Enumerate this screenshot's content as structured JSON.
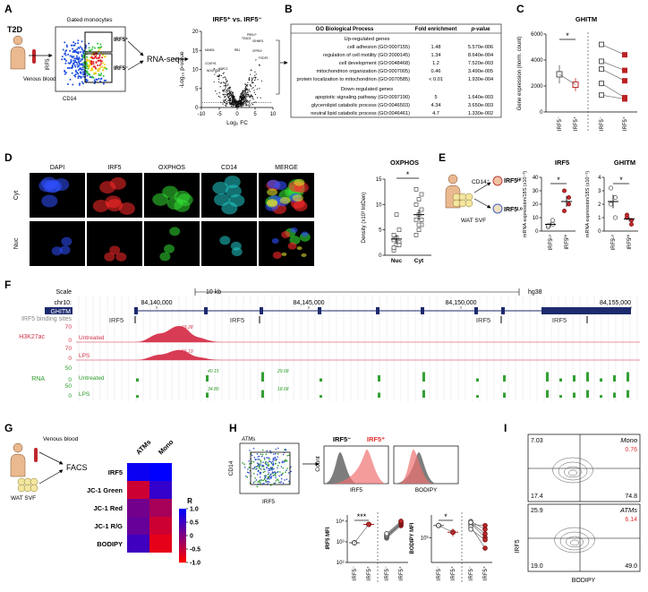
{
  "panel_a": {
    "label": "A",
    "group": "T2D",
    "sample": "Venous blood",
    "gate_title": "Gated monocytes",
    "flow_y": "IRF5",
    "flow_x": "CD14",
    "gate_pos": "IRF5⁺",
    "gate_neg": "IRF5⁻",
    "method": "RNA-seq",
    "volcano": {
      "title": "IRF5⁺ vs. IRF5⁻",
      "ylabel": "-Log₁₀ p-value",
      "xlabel": "Log₂ FC",
      "xlim": [
        -10,
        10
      ],
      "ylim": [
        0,
        20
      ],
      "xticks": [
        -10,
        -5,
        0,
        5,
        10
      ],
      "yticks": [
        0,
        5,
        10,
        15,
        20
      ],
      "genes": [
        "TEAD3",
        "PRELP",
        "IGHMR1",
        "RB1",
        "GPR19",
        "FGDP1",
        "MANDL",
        "COATH1",
        "NDUFS8A",
        "NCFC1"
      ]
    }
  },
  "panel_b": {
    "label": "B",
    "header": [
      "GO Biological Process",
      "Fold enrichment",
      "p-value"
    ],
    "up_title": "Up-regulated genes",
    "up_rows": [
      [
        "cell adhesion (GO:0007155)",
        "1.48",
        "5.570e-006"
      ],
      [
        "regulation of cell motility (GO:2000145)",
        "1.34",
        "8.640e-004"
      ],
      [
        "cell development (GO:0048468)",
        "1.2",
        "7.520e-003"
      ],
      [
        "mitochondrion organization (GO:0007005)",
        "0.46",
        "3.490e-005"
      ],
      [
        "protein localization to mitochondrion (GO:0070585)",
        "< 0.01",
        "1.930e-004"
      ]
    ],
    "down_title": "Down-regulated genes",
    "down_rows": [
      [
        "apoptotic signaling pathway (GO:0097190)",
        "5",
        "1.640e-003"
      ],
      [
        "glycerolipid catabolic process (GO:0046503)",
        "4.34",
        "3.650e-003"
      ],
      [
        "neutral lipid catabolic process (GO:0046461)",
        "4.7",
        "1.330e-002"
      ]
    ]
  },
  "panel_c": {
    "label": "C",
    "title": "GHITM",
    "ylabel": "Gene expression (norm. count)",
    "ylim": [
      0,
      6000
    ],
    "yticks": [
      0,
      2000,
      4000,
      6000
    ],
    "significance": "*",
    "xlabels": [
      "IRF5⁻",
      "IRF5⁺",
      "IRF5⁻",
      "IRF5⁺"
    ],
    "means": [
      2900,
      2100
    ],
    "errors": [
      700,
      500
    ],
    "pairs": [
      [
        5200,
        4400
      ],
      [
        3900,
        3200
      ],
      [
        3300,
        2400
      ],
      [
        2200,
        1100
      ],
      [
        1300,
        1000
      ]
    ]
  },
  "panel_d": {
    "label": "D",
    "channels": [
      "DAPI",
      "IRF5",
      "OXPHOS",
      "CD14",
      "MERGE"
    ],
    "rows": [
      "Cyt",
      "Nuc"
    ],
    "chart": {
      "title": "OXPHOS",
      "ylabel": "Density (x10³ IntDen)",
      "ylim": [
        0,
        15
      ],
      "yticks": [
        0,
        5,
        10,
        15
      ],
      "significance": "*",
      "xlabels": [
        "Nuc",
        "Cyt"
      ],
      "points": [
        [
          1,
          2,
          2.5,
          3,
          3.5,
          5,
          1.5,
          8,
          2,
          4
        ],
        [
          4,
          5,
          6,
          7,
          8,
          9,
          10,
          11,
          12,
          13,
          6,
          7
        ]
      ],
      "means": [
        3.2,
        8
      ],
      "errors": [
        0.8,
        1
      ]
    }
  },
  "panel_e": {
    "label": "E",
    "marker": "CD14⁺",
    "hi": "IRF5ᴴⁱ",
    "lo": "IRF5ᴸᵒ",
    "tissue": "WAT SVF",
    "charts": [
      {
        "title": "IRF5",
        "ylabel": "mRNA expression/18S (x10⁻³)",
        "ylim": [
          0,
          40
        ],
        "yticks": [
          0,
          10,
          20,
          30,
          40
        ],
        "significance": "*",
        "xlabels": [
          "IRF5ᴸᵒ",
          "IRF5ᴴⁱ"
        ],
        "points": [
          [
            3,
            5,
            4,
            8
          ],
          [
            15,
            25,
            30,
            20
          ]
        ],
        "means": [
          5,
          22
        ],
        "errors": [
          1.5,
          4
        ]
      },
      {
        "title": "GHITM",
        "ylabel": "mRNA expression/18S (x10⁻²)",
        "ylim": [
          0,
          4
        ],
        "yticks": [
          0,
          1,
          2,
          3,
          4
        ],
        "significance": "*",
        "xlabels": [
          "IRF5ᴸᵒ",
          "IRF5ᴴⁱ"
        ],
        "points": [
          [
            3.2,
            2.5,
            2.0,
            1.0
          ],
          [
            1.0,
            0.8,
            1.2,
            0.5
          ]
        ],
        "means": [
          2.2,
          0.9
        ],
        "errors": [
          0.5,
          0.15
        ]
      }
    ]
  },
  "panel_f": {
    "label": "F",
    "scale": "Scale",
    "scale_bar": "10 kb",
    "assembly": "hg38",
    "chrom": "chr10:",
    "positions": [
      "84,140,000",
      "84,145,000",
      "84,150,000",
      "84,155,000"
    ],
    "gene": "GHITM",
    "binding_track": "IRF5 binding sites",
    "binding_labels": [
      "IRF5",
      "IRF5",
      "IRF5",
      "IRF5"
    ],
    "h3k27ac": "H3K27ac",
    "rna": "RNA",
    "tracks": [
      {
        "name": "Untreated",
        "max": "70",
        "min": "0",
        "peak": "69.28"
      },
      {
        "name": "LPS",
        "max": "70",
        "min": "0",
        "peak": "56.19"
      }
    ],
    "rna_tracks": [
      {
        "name": "Untreated",
        "max": "50",
        "min": "0",
        "peaks": [
          "40.15",
          "29.68"
        ]
      },
      {
        "name": "LPS",
        "max": "50",
        "min": "0",
        "peaks": [
          "34.80",
          "18.68"
        ]
      }
    ]
  },
  "panel_g": {
    "label": "G",
    "sample": "Venous blood",
    "tissue": "WAT SVF",
    "method": "FACS",
    "heatmap": {
      "columns": [
        "ATMs",
        "Mono"
      ],
      "rows": [
        "IRF5",
        "JC-1 Green",
        "JC-1 Red",
        "JC-1 R/G",
        "BODIPY"
      ],
      "values": [
        [
          0.9,
          1.0
        ],
        [
          -0.6,
          0.6
        ],
        [
          0.1,
          -0.3
        ],
        [
          0.2,
          -0.6
        ],
        [
          0.5,
          -0.8
        ]
      ],
      "clim": [
        -1,
        1
      ],
      "legend_title": "R",
      "colorbar_ticks": [
        {
          "value": 1,
          "label": "1.0"
        },
        {
          "value": 0.5,
          "label": "0.5"
        },
        0,
        {
          "value": -0.5,
          "label": "-0.5"
        },
        {
          "value": -1,
          "label": "-1.0"
        }
      ]
    }
  },
  "panel_h": {
    "label": "H",
    "population": "ATMs",
    "flow_y": "CD14",
    "flow_x": "IRF5",
    "neg": "IRF5⁻",
    "pos": "IRF5⁺",
    "hist_y": "Count",
    "hist_x": [
      "IRF5",
      "BODIPY"
    ],
    "charts": [
      {
        "ylabel": "IRF5 MFI",
        "log": true,
        "ylim": [
          100,
          20000
        ],
        "yticks": [
          {
            "value": 100,
            "label": "10²"
          },
          {
            "value": 1000,
            "label": "10³"
          },
          {
            "value": 10000,
            "label": "10⁴"
          }
        ],
        "significance": "***",
        "xlabels": [
          "IRF5⁻",
          "IRF5⁺",
          "IRF5⁻",
          "IRF5⁺"
        ],
        "means": [
          900,
          7000
        ],
        "errors": [
          100,
          800
        ],
        "pairs": [
          [
            1500,
            6000
          ],
          [
            1700,
            7000
          ],
          [
            1800,
            7500
          ],
          [
            2000,
            8000
          ],
          [
            2200,
            9000
          ],
          [
            2500,
            10000
          ]
        ]
      },
      {
        "ylabel": "BODIPY MFI",
        "log": true,
        "ylim": [
          300,
          3000
        ],
        "yticks": [
          {
            "value": 1000,
            "label": "10³"
          }
        ],
        "significance": "*",
        "xlabels": [
          "IRF5⁻",
          "IRF5⁺",
          "IRF5⁻",
          "IRF5⁺"
        ],
        "means": [
          1800,
          1300
        ],
        "errors": [
          200,
          250
        ],
        "pairs": [
          [
            2200,
            1500
          ],
          [
            2000,
            1000
          ],
          [
            1900,
            1800
          ],
          [
            1700,
            600
          ],
          [
            1500,
            900
          ],
          [
            2100,
            1200
          ]
        ]
      }
    ]
  },
  "panel_i": {
    "label": "I",
    "ylabel": "IRF5",
    "xlabel": "BODIPY",
    "plots": [
      {
        "population": "Mono",
        "quadrants": [
          "7.03",
          "0.76",
          "17.4",
          "74.8"
        ]
      },
      {
        "population": "ATMs",
        "quadrants": [
          "25.9",
          "6.14",
          "19.0",
          "49.0"
        ]
      }
    ]
  }
}
